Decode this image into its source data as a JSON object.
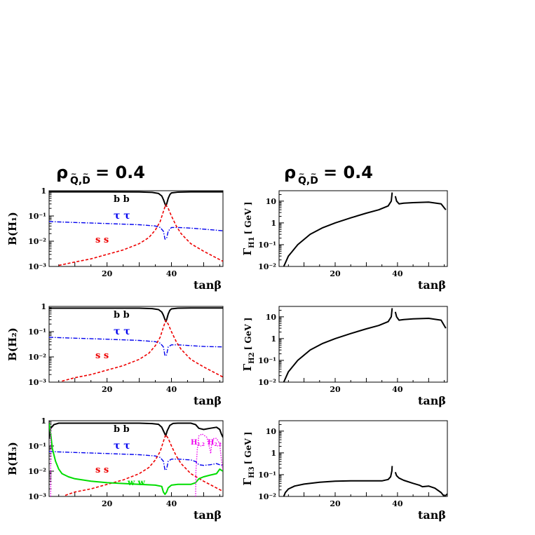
{
  "header": {
    "left": {
      "rho": "ρ",
      "sub": "Q,D",
      "rest": "= 0.4"
    },
    "right": {
      "rho": "ρ",
      "sub": "Q,D",
      "rest": "= 0.4"
    }
  },
  "colors": {
    "bb": "#000000",
    "tautau": "#0000ee",
    "ss": "#ee0000",
    "ww": "#00dd00",
    "hh": "#ee00ee",
    "width": "#000000"
  },
  "chart_data": [
    {
      "id": "bh1",
      "type": "line",
      "log_y": true,
      "xlim": [
        2,
        56
      ],
      "ylim": [
        0.001,
        1
      ],
      "xlabel": "tanβ",
      "ylabel": "B(H₁)",
      "xticks": [
        20,
        40
      ],
      "ytick_labels": [
        "1",
        "10⁻¹",
        "10⁻²",
        "10⁻³"
      ],
      "labels": {
        "bb": "b  b",
        "tautau": "τ τ",
        "ss": "s  s"
      },
      "series": [
        {
          "key": "bb",
          "x": [
            2,
            10,
            20,
            30,
            34,
            36,
            37,
            37.5,
            38,
            38.3,
            38.6,
            39,
            39.5,
            40,
            42,
            46,
            50,
            56
          ],
          "y": [
            0.9,
            0.9,
            0.9,
            0.89,
            0.86,
            0.78,
            0.62,
            0.45,
            0.3,
            0.25,
            0.33,
            0.5,
            0.7,
            0.82,
            0.88,
            0.9,
            0.9,
            0.9
          ]
        },
        {
          "key": "tautau",
          "x": [
            2,
            10,
            20,
            30,
            35,
            36.5,
            37.5,
            38,
            38.5,
            39,
            40,
            42,
            46,
            50,
            56
          ],
          "y": [
            0.06,
            0.055,
            0.05,
            0.045,
            0.04,
            0.035,
            0.025,
            0.012,
            0.013,
            0.025,
            0.035,
            0.035,
            0.033,
            0.03,
            0.026
          ]
        },
        {
          "key": "ss",
          "x": [
            5,
            10,
            15,
            20,
            25,
            30,
            33,
            35,
            36.5,
            37.5,
            38.2,
            39,
            40,
            41.5,
            43,
            46,
            50,
            56
          ],
          "y": [
            0.0011,
            0.0015,
            0.002,
            0.003,
            0.0045,
            0.008,
            0.014,
            0.028,
            0.06,
            0.15,
            0.28,
            0.2,
            0.1,
            0.04,
            0.02,
            0.008,
            0.004,
            0.0016
          ]
        }
      ]
    },
    {
      "id": "gh1",
      "type": "line",
      "log_y": true,
      "xlim": [
        2,
        56
      ],
      "ylim": [
        0.01,
        30
      ],
      "xlabel": "tanβ",
      "ylabel": "Γ",
      "ylabel_sub": "H1",
      "ylabel_unit": "[ GeV ]",
      "xticks": [
        20,
        40
      ],
      "ytick_labels": [
        "10",
        "1",
        "10⁻¹",
        "10⁻²"
      ],
      "series": [
        {
          "key": "width",
          "x": [
            3.5,
            5,
            8,
            12,
            16,
            20,
            25,
            30,
            34,
            37,
            38,
            38.3
          ],
          "y": [
            0.01,
            0.03,
            0.1,
            0.3,
            0.6,
            1,
            1.7,
            2.8,
            4,
            6,
            10,
            25
          ]
        },
        {
          "key": "width",
          "x": [
            39.3,
            39.7,
            40.5,
            42,
            45,
            50,
            54,
            55.5
          ],
          "y": [
            17,
            10,
            7.5,
            8,
            8.5,
            9,
            7.5,
            4
          ]
        }
      ]
    },
    {
      "id": "bh2",
      "type": "line",
      "log_y": true,
      "xlim": [
        2,
        56
      ],
      "ylim": [
        0.001,
        1
      ],
      "xlabel": "tanβ",
      "ylabel": "B(H₂)",
      "xticks": [
        20,
        40
      ],
      "ytick_labels": [
        "1",
        "10⁻¹",
        "10⁻²",
        "10⁻³"
      ],
      "labels": {
        "bb": "b  b",
        "tautau": "τ τ",
        "ss": "s  s"
      },
      "series": [
        {
          "key": "bb",
          "x": [
            2,
            10,
            20,
            30,
            34,
            36,
            37,
            37.5,
            38,
            38.3,
            38.6,
            39,
            39.5,
            40,
            42,
            46,
            50,
            56
          ],
          "y": [
            0.85,
            0.85,
            0.85,
            0.85,
            0.82,
            0.75,
            0.6,
            0.45,
            0.3,
            0.25,
            0.33,
            0.5,
            0.7,
            0.8,
            0.85,
            0.87,
            0.87,
            0.87
          ]
        },
        {
          "key": "tautau",
          "x": [
            2,
            10,
            20,
            30,
            35,
            36.5,
            37.5,
            38,
            38.5,
            39,
            40,
            42,
            46,
            50,
            56
          ],
          "y": [
            0.06,
            0.055,
            0.05,
            0.045,
            0.04,
            0.035,
            0.025,
            0.011,
            0.012,
            0.025,
            0.03,
            0.03,
            0.028,
            0.026,
            0.025
          ]
        },
        {
          "key": "ss",
          "x": [
            6,
            10,
            15,
            20,
            25,
            30,
            33,
            35,
            36.5,
            37.5,
            38.2,
            39,
            40,
            41.5,
            43,
            46,
            50,
            56
          ],
          "y": [
            0.0011,
            0.0015,
            0.002,
            0.003,
            0.0045,
            0.008,
            0.014,
            0.028,
            0.06,
            0.15,
            0.28,
            0.2,
            0.1,
            0.04,
            0.02,
            0.008,
            0.004,
            0.0016
          ]
        }
      ]
    },
    {
      "id": "gh2",
      "type": "line",
      "log_y": true,
      "xlim": [
        2,
        56
      ],
      "ylim": [
        0.01,
        30
      ],
      "xlabel": "tanβ",
      "ylabel": "Γ",
      "ylabel_sub": "H2",
      "ylabel_unit": "[ GeV ]",
      "xticks": [
        20,
        40
      ],
      "ytick_labels": [
        "10",
        "1",
        "10⁻¹",
        "10⁻²"
      ],
      "series": [
        {
          "key": "width",
          "x": [
            3.5,
            5,
            8,
            12,
            16,
            20,
            25,
            30,
            34,
            37,
            38,
            38.3
          ],
          "y": [
            0.01,
            0.03,
            0.1,
            0.3,
            0.6,
            1,
            1.7,
            2.8,
            4,
            6,
            10,
            25
          ]
        },
        {
          "key": "width",
          "x": [
            39.3,
            39.7,
            40.5,
            42,
            45,
            50,
            54,
            55.5
          ],
          "y": [
            17,
            10,
            7,
            7.5,
            8,
            8.5,
            7,
            3
          ]
        }
      ]
    },
    {
      "id": "bh3",
      "type": "line",
      "log_y": true,
      "xlim": [
        2,
        56
      ],
      "ylim": [
        0.001,
        1
      ],
      "xlabel": "tanβ",
      "ylabel": "B(H₃)",
      "xticks": [
        20,
        40
      ],
      "ytick_labels": [
        "1",
        "10⁻¹",
        "10⁻²",
        "10⁻³"
      ],
      "labels": {
        "bb": "b  b",
        "tautau": "τ τ",
        "ss": "s  s",
        "ww": "w w",
        "h12": "H",
        "h12_sub": "1,2",
        "h22": "H",
        "h22_sub": "2,2"
      },
      "series": [
        {
          "key": "bb",
          "x": [
            2,
            2.5,
            3.5,
            5,
            10,
            20,
            30,
            34,
            36,
            37,
            37.7,
            38.2,
            38.7,
            39.5,
            40.5,
            42,
            46,
            47.5,
            48.5,
            50,
            52,
            54,
            55,
            55.5,
            56
          ],
          "y": [
            0.2,
            0.5,
            0.7,
            0.8,
            0.8,
            0.8,
            0.8,
            0.77,
            0.72,
            0.55,
            0.35,
            0.25,
            0.4,
            0.65,
            0.78,
            0.8,
            0.8,
            0.7,
            0.5,
            0.45,
            0.5,
            0.55,
            0.45,
            0.3,
            0.22
          ]
        },
        {
          "key": "tautau",
          "x": [
            2,
            10,
            20,
            30,
            35,
            36.5,
            37.5,
            38,
            38.5,
            39,
            40,
            42,
            46,
            47.5,
            48.5,
            50,
            52,
            54,
            55,
            56
          ],
          "y": [
            0.06,
            0.055,
            0.05,
            0.045,
            0.04,
            0.035,
            0.025,
            0.011,
            0.012,
            0.025,
            0.03,
            0.03,
            0.028,
            0.024,
            0.018,
            0.017,
            0.018,
            0.02,
            0.018,
            0.017
          ]
        },
        {
          "key": "ss",
          "x": [
            7,
            10,
            15,
            20,
            25,
            30,
            33,
            35,
            36.5,
            37.5,
            38.2,
            39,
            40,
            41.5,
            43,
            46,
            50,
            56
          ],
          "y": [
            0.0011,
            0.0015,
            0.002,
            0.003,
            0.0045,
            0.008,
            0.014,
            0.028,
            0.06,
            0.15,
            0.28,
            0.2,
            0.1,
            0.04,
            0.02,
            0.008,
            0.004,
            0.0016
          ]
        },
        {
          "key": "ww",
          "x": [
            2,
            2.5,
            3,
            4,
            5,
            6,
            8,
            10,
            15,
            20,
            30,
            35,
            37,
            37.5,
            38,
            38.5,
            39,
            40,
            42,
            46,
            47.5,
            48.5,
            50,
            52,
            54,
            55,
            56
          ],
          "y": [
            0.8,
            0.3,
            0.08,
            0.025,
            0.012,
            0.008,
            0.006,
            0.005,
            0.004,
            0.0035,
            0.003,
            0.0028,
            0.0025,
            0.0015,
            0.0012,
            0.0015,
            0.0022,
            0.0028,
            0.003,
            0.003,
            0.0035,
            0.005,
            0.006,
            0.007,
            0.008,
            0.012,
            0.01
          ]
        },
        {
          "key": "hh",
          "x": [
            47.5,
            47.6,
            48,
            48.5,
            49.5,
            51,
            52,
            52.2,
            52.5,
            53.2,
            54,
            55,
            55.5,
            56
          ],
          "y": [
            0.001,
            0.01,
            0.07,
            0.25,
            0.3,
            0.22,
            0.07,
            0.05,
            0.12,
            0.2,
            0.2,
            0.12,
            0.03,
            0.01
          ]
        },
        {
          "key": "hh",
          "x": [
            2.5,
            2.5
          ],
          "y": [
            0.001,
            0.5
          ]
        }
      ]
    },
    {
      "id": "gh3",
      "type": "line",
      "log_y": true,
      "xlim": [
        2,
        56
      ],
      "ylim": [
        0.01,
        30
      ],
      "xlabel": "tanβ",
      "ylabel": "Γ",
      "ylabel_sub": "H3",
      "ylabel_unit": "[ GeV ]",
      "xticks": [
        20,
        40
      ],
      "ytick_labels": [
        "10",
        "1",
        "10⁻¹",
        "10⁻²"
      ],
      "series": [
        {
          "key": "width",
          "x": [
            3.5,
            4,
            5,
            7,
            10,
            15,
            20,
            25,
            30,
            35,
            37,
            37.8,
            38.2,
            38.3
          ],
          "y": [
            0.01,
            0.015,
            0.022,
            0.03,
            0.037,
            0.045,
            0.05,
            0.052,
            0.052,
            0.052,
            0.06,
            0.08,
            0.15,
            0.25
          ]
        },
        {
          "key": "width",
          "x": [
            39.3,
            39.7,
            40.5,
            42,
            45,
            47,
            48,
            50,
            52,
            54,
            55,
            56
          ],
          "y": [
            0.13,
            0.09,
            0.07,
            0.055,
            0.04,
            0.033,
            0.028,
            0.03,
            0.024,
            0.015,
            0.01,
            0.013
          ]
        }
      ]
    }
  ]
}
